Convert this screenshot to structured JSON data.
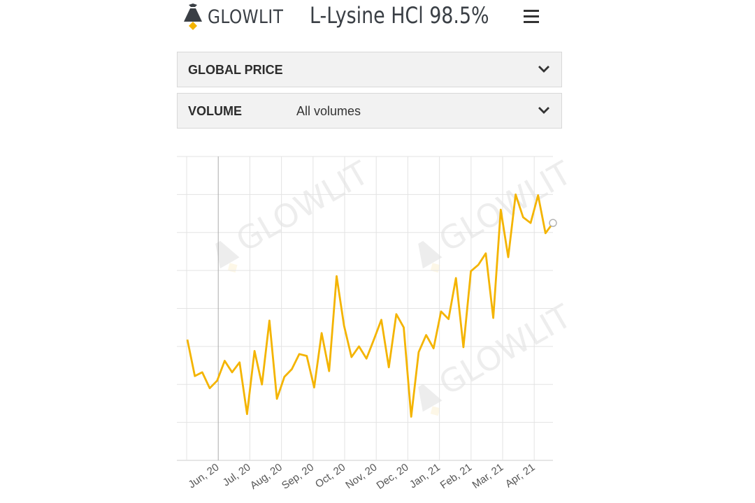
{
  "header": {
    "logo_text": "GLOWLIT",
    "title": "L-Lysine HCl 98.5%"
  },
  "filters": [
    {
      "label": "GLOBAL PRICE",
      "value": ""
    },
    {
      "label": "VOLUME",
      "value": "All volumes"
    }
  ],
  "watermark_text": "GLOWLIT",
  "colors": {
    "line": "#f4b400",
    "grid": "#e3e3e3",
    "text": "#555555",
    "panel": "#f2f2f2"
  },
  "chart_data": {
    "type": "line",
    "title": "",
    "xlabel": "",
    "ylabel": "",
    "x_tick_labels": [
      "Jun, 20",
      "Jul, 20",
      "Aug, 20",
      "Sep, 20",
      "Oct, 20",
      "Nov, 20",
      "Dec, 20",
      "Jan, 21",
      "Feb, 21",
      "Mar, 21",
      "Apr, 21"
    ],
    "x_range": [
      0,
      49
    ],
    "y_range": [
      0,
      8
    ],
    "grid": true,
    "series": [
      {
        "name": "",
        "x": [
          0,
          1,
          2,
          3,
          4,
          5,
          6,
          7,
          8,
          9,
          10,
          11,
          12,
          13,
          14,
          15,
          16,
          17,
          18,
          19,
          20,
          21,
          22,
          23,
          24,
          25,
          26,
          27,
          28,
          29,
          30,
          31,
          32,
          33,
          34,
          35,
          36,
          37,
          38,
          39,
          40,
          41,
          42,
          43,
          44,
          45,
          46,
          47,
          48,
          49
        ],
        "y": [
          3.18,
          2.22,
          2.32,
          1.9,
          2.1,
          2.62,
          2.32,
          2.58,
          1.22,
          2.88,
          2.0,
          3.68,
          1.62,
          2.2,
          2.4,
          2.8,
          2.75,
          1.92,
          3.35,
          2.35,
          4.85,
          3.55,
          2.72,
          3.0,
          2.68,
          3.18,
          3.7,
          2.45,
          3.85,
          3.5,
          1.15,
          2.85,
          3.3,
          2.95,
          3.92,
          3.72,
          4.8,
          2.98,
          4.98,
          5.15,
          5.45,
          3.75,
          6.6,
          5.35,
          7.0,
          6.4,
          6.25,
          6.98,
          5.98,
          6.25
        ]
      }
    ],
    "end_marker": true
  }
}
